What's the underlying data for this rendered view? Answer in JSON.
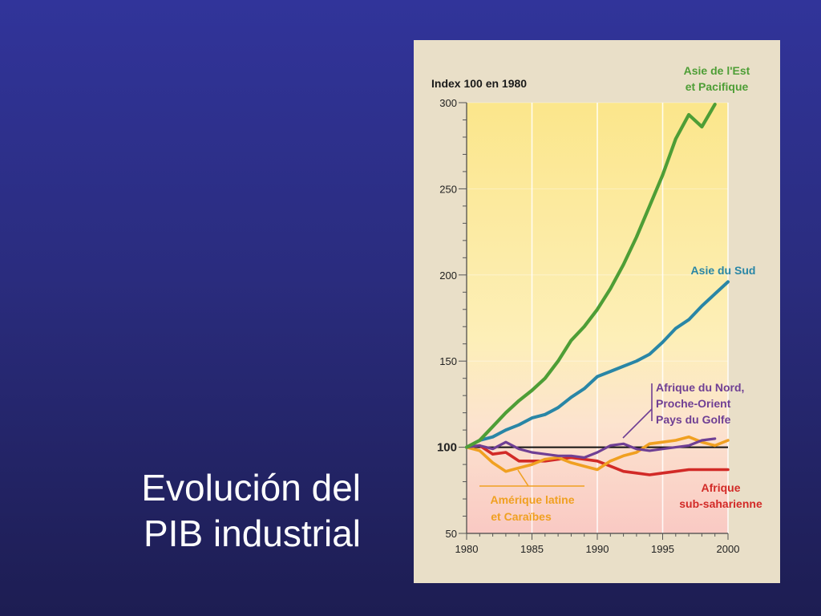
{
  "slide": {
    "title_line1": "Evolución del",
    "title_line2": "PIB industrial"
  },
  "chart_data": {
    "type": "line",
    "ylabel": "Index 100 en 1980",
    "xlim": [
      1980,
      2000
    ],
    "ylim": [
      50,
      300
    ],
    "xticks": [
      1980,
      1985,
      1990,
      1995,
      2000
    ],
    "yticks": [
      50,
      100,
      150,
      200,
      250,
      300
    ],
    "reference_line": 100,
    "grid": true,
    "colors": {
      "east_asia": "#4e9e36",
      "south_asia": "#2986a6",
      "mena": "#6f3f94",
      "latin_america": "#f0a021",
      "subsaharan": "#d22a27",
      "reference": "#111111"
    },
    "series": [
      {
        "key": "east_asia",
        "name_line1": "Asie de l'Est",
        "name_line2": "et Pacifique",
        "x": [
          1980,
          1981,
          1982,
          1983,
          1984,
          1985,
          1986,
          1987,
          1988,
          1989,
          1990,
          1991,
          1992,
          1993,
          1994,
          1995,
          1996,
          1997,
          1998,
          1999
        ],
        "values": [
          100,
          104,
          112,
          120,
          127,
          133,
          140,
          150,
          162,
          170,
          180,
          192,
          206,
          222,
          240,
          258,
          279,
          293,
          286,
          299
        ]
      },
      {
        "key": "south_asia",
        "name_line1": "Asie du Sud",
        "x": [
          1980,
          1981,
          1982,
          1983,
          1984,
          1985,
          1986,
          1987,
          1988,
          1989,
          1990,
          1991,
          1992,
          1993,
          1994,
          1995,
          1996,
          1997,
          1998,
          1999,
          2000
        ],
        "values": [
          100,
          104,
          106,
          110,
          113,
          117,
          119,
          123,
          129,
          134,
          141,
          144,
          147,
          150,
          154,
          161,
          169,
          174,
          182,
          189,
          196
        ]
      },
      {
        "key": "mena",
        "name_line1": "Afrique du Nord,",
        "name_line2": "Proche-Orient",
        "name_line3": "Pays du Golfe",
        "x": [
          1980,
          1981,
          1982,
          1983,
          1984,
          1985,
          1986,
          1987,
          1988,
          1989,
          1990,
          1991,
          1992,
          1993,
          1994,
          1995,
          1996,
          1997,
          1998,
          1999
        ],
        "values": [
          100,
          101,
          99,
          103,
          99,
          97,
          96,
          95,
          95,
          94,
          97,
          101,
          102,
          99,
          98,
          99,
          100,
          101,
          104,
          105
        ]
      },
      {
        "key": "latin_america",
        "name_line1": "Amérique latine",
        "name_line2": "et Caraïbes",
        "x": [
          1980,
          1981,
          1982,
          1983,
          1984,
          1985,
          1986,
          1987,
          1988,
          1989,
          1990,
          1991,
          1992,
          1993,
          1994,
          1995,
          1996,
          1997,
          1998,
          1999,
          2000
        ],
        "values": [
          100,
          98,
          91,
          86,
          88,
          90,
          93,
          94,
          91,
          89,
          87,
          92,
          95,
          97,
          102,
          103,
          104,
          106,
          103,
          101,
          104
        ]
      },
      {
        "key": "subsaharan",
        "name_line1": "Afrique",
        "name_line2": "sub-saharienne",
        "x": [
          1980,
          1981,
          1982,
          1983,
          1984,
          1985,
          1986,
          1987,
          1988,
          1989,
          1990,
          1991,
          1992,
          1993,
          1994,
          1995,
          1996,
          1997,
          1998,
          1999,
          2000
        ],
        "values": [
          100,
          101,
          96,
          97,
          92,
          92,
          92,
          93,
          94,
          93,
          92,
          89,
          86,
          85,
          84,
          85,
          86,
          87,
          87,
          87,
          87
        ]
      }
    ]
  }
}
